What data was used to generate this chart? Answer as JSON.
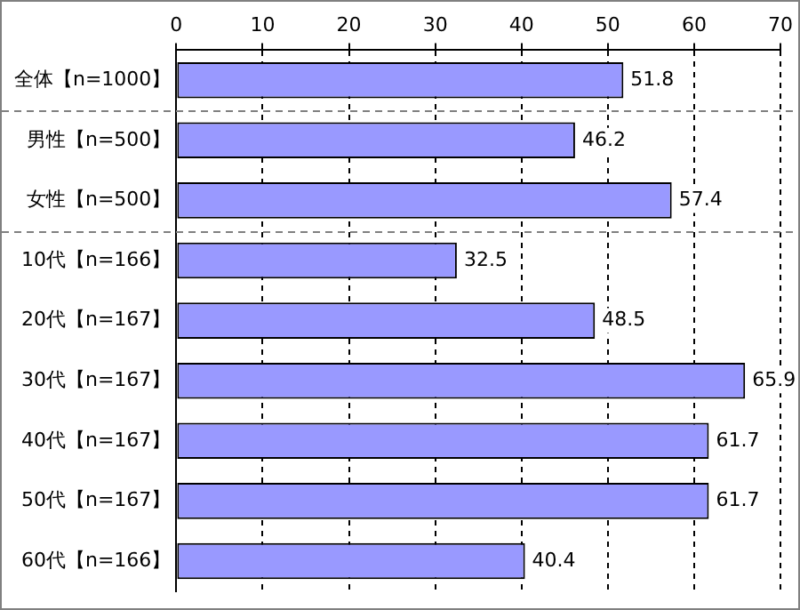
{
  "chart_data": {
    "type": "bar",
    "orientation": "horizontal",
    "categories": [
      "全体【n=1000】",
      "男性【n=500】",
      "女性【n=500】",
      "10代【n=166】",
      "20代【n=167】",
      "30代【n=167】",
      "40代【n=167】",
      "50代【n=167】",
      "60代【n=166】"
    ],
    "values": [
      51.8,
      46.2,
      57.4,
      32.5,
      48.5,
      65.9,
      61.7,
      61.7,
      40.4
    ],
    "color": "#9999ff",
    "xlim": [
      0,
      70
    ],
    "xticks": [
      0,
      10,
      20,
      30,
      40,
      50,
      60,
      70
    ],
    "grid": "x",
    "data_labels": true,
    "legend": false
  }
}
